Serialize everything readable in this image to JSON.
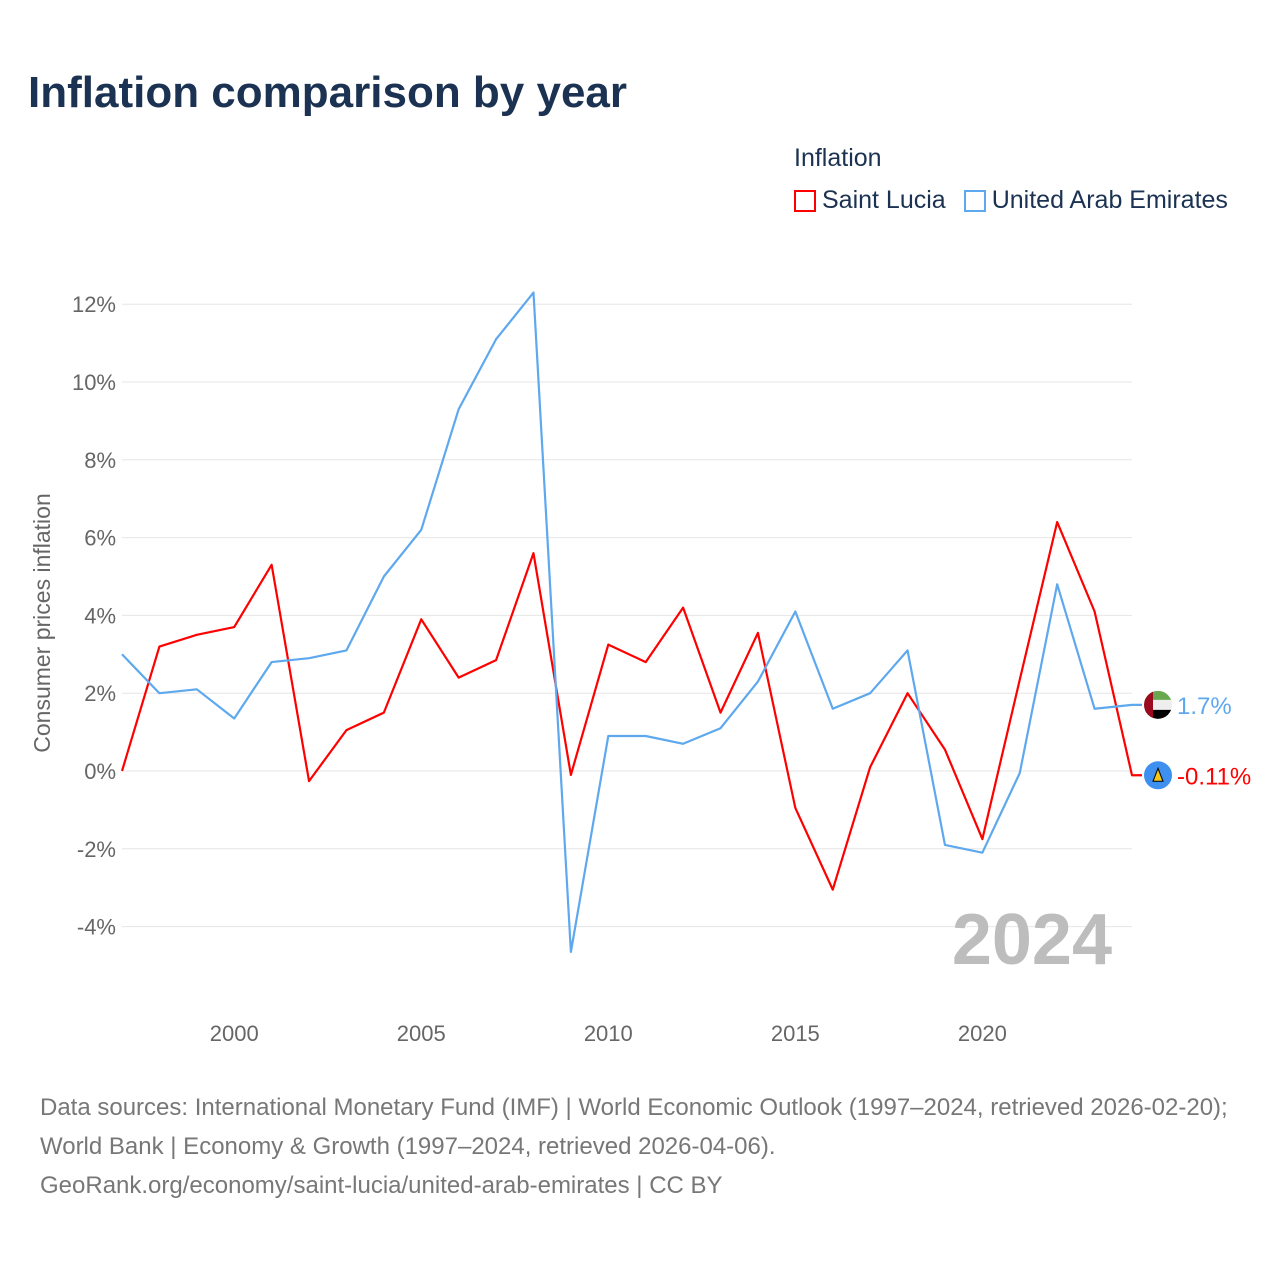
{
  "chart_data": {
    "type": "line",
    "title": "Inflation comparison by year",
    "legend_title": "Inflation",
    "legend_position": "top-right",
    "ylabel": "Consumer prices inflation",
    "xlabel": "",
    "x": [
      1997,
      1998,
      1999,
      2000,
      2001,
      2002,
      2003,
      2004,
      2005,
      2006,
      2007,
      2008,
      2009,
      2010,
      2011,
      2012,
      2013,
      2014,
      2015,
      2016,
      2017,
      2018,
      2019,
      2020,
      2021,
      2022,
      2023,
      2024
    ],
    "xlim": [
      1997,
      2024
    ],
    "ylim": [
      -5.5,
      13
    ],
    "x_ticks": [
      2000,
      2005,
      2010,
      2015,
      2020
    ],
    "y_ticks": [
      -4,
      -2,
      0,
      2,
      4,
      6,
      8,
      10,
      12
    ],
    "y_tick_labels": [
      "-4%",
      "-2%",
      "0%",
      "2%",
      "4%",
      "6%",
      "8%",
      "10%",
      "12%"
    ],
    "grid": true,
    "watermark_year": "2024",
    "series": [
      {
        "name": "Saint Lucia",
        "color": "#ff0000",
        "end_label": "-0.11%",
        "values": [
          0,
          3.2,
          3.5,
          3.7,
          5.3,
          -0.26,
          1.05,
          1.5,
          3.9,
          2.4,
          2.85,
          5.6,
          -0.1,
          3.25,
          2.8,
          4.2,
          1.5,
          3.55,
          -0.95,
          -3.05,
          0.1,
          2.0,
          0.55,
          -1.75,
          2.35,
          6.4,
          4.1,
          -0.11
        ]
      },
      {
        "name": "United Arab Emirates",
        "color": "#5ea8ee",
        "end_label": "1.7%",
        "values": [
          3.0,
          2.0,
          2.1,
          1.35,
          2.8,
          2.9,
          3.1,
          5.0,
          6.2,
          9.3,
          11.1,
          12.3,
          -4.65,
          0.9,
          0.9,
          0.7,
          1.1,
          2.3,
          4.1,
          1.6,
          2.0,
          3.1,
          -1.9,
          -2.1,
          -0.05,
          4.8,
          1.6,
          1.7
        ]
      }
    ]
  },
  "footer": {
    "line1": "Data sources: International Monetary Fund (IMF) | World Economic Outlook (1997–2024, retrieved 2026-02-20); World Bank | Economy & Growth (1997–2024, retrieved 2026-04-06).",
    "line2": "GeoRank.org/economy/saint-lucia/united-arab-emirates | CC BY"
  }
}
